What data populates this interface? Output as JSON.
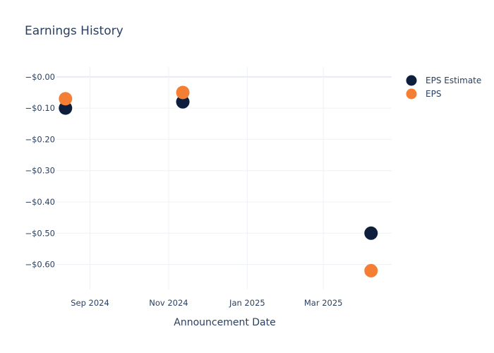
{
  "chart_data": {
    "type": "scatter",
    "title": "Earnings History",
    "xlabel": "Announcement Date",
    "ylabel": "",
    "x_ticks": [
      "Sep 2024",
      "Nov 2024",
      "Jan 2025",
      "Mar 2025"
    ],
    "y_ticks": [
      "−$0.00",
      "−$0.10",
      "−$0.20",
      "−$0.30",
      "−$0.40",
      "−$0.50",
      "−$0.60"
    ],
    "ylim": [
      -0.68,
      0.02
    ],
    "xlim": [
      "2024-08-06",
      "2025-04-23"
    ],
    "grid": true,
    "legend_position": "top-right",
    "series": [
      {
        "name": "EPS Estimate",
        "color": "#0d1f3c",
        "points": [
          {
            "x": "2024-08-13",
            "y": -0.1
          },
          {
            "x": "2024-11-12",
            "y": -0.08
          },
          {
            "x": "2025-04-07",
            "y": -0.5
          }
        ]
      },
      {
        "name": "EPS",
        "color": "#f47f34",
        "points": [
          {
            "x": "2024-08-13",
            "y": -0.07
          },
          {
            "x": "2024-11-12",
            "y": -0.05
          },
          {
            "x": "2025-04-07",
            "y": -0.62
          }
        ]
      }
    ]
  }
}
